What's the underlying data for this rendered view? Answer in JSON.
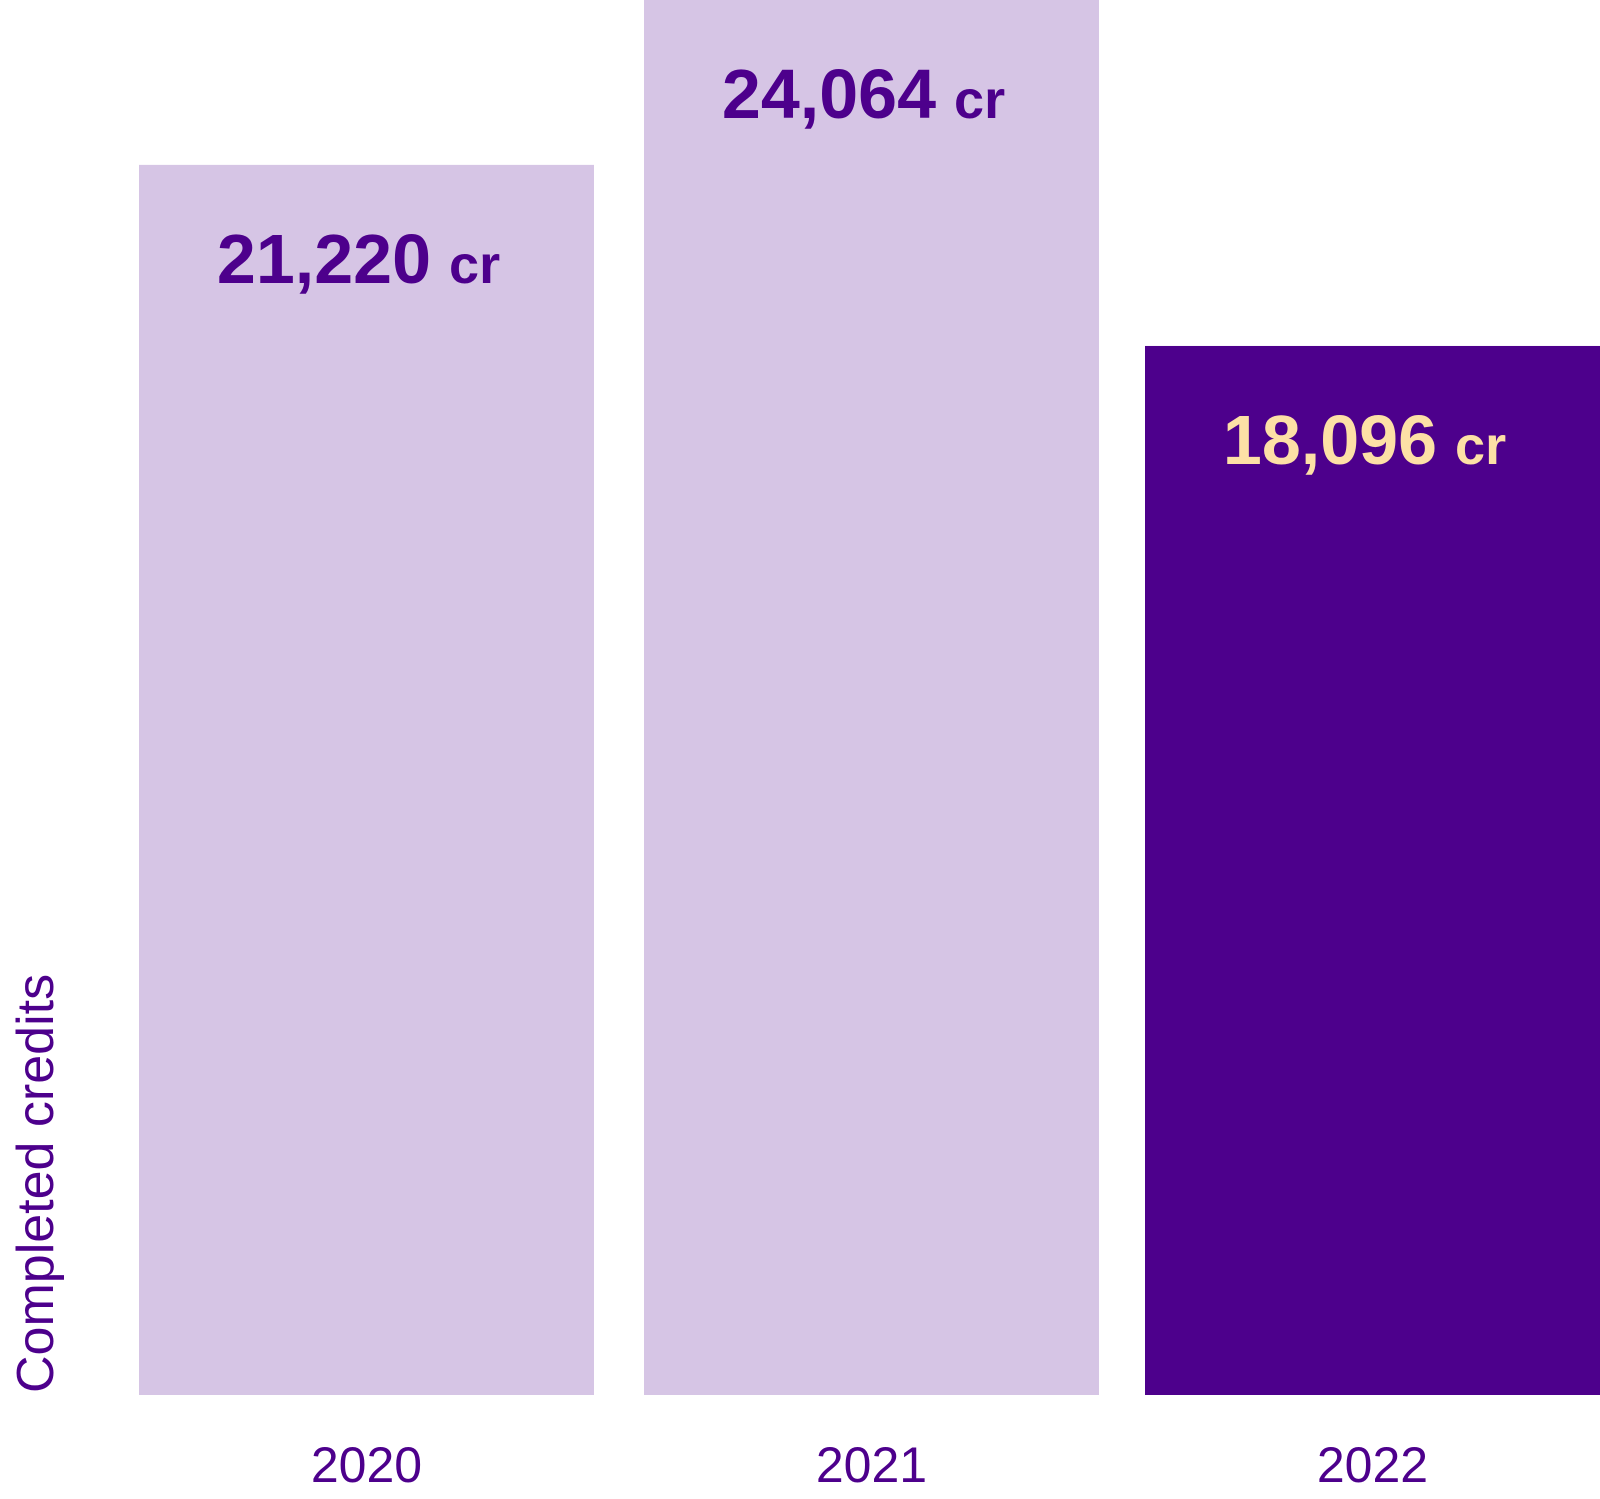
{
  "chart_data": {
    "type": "bar",
    "title": "",
    "xlabel": "",
    "ylabel": "Completed credits",
    "categories": [
      "2020",
      "2021",
      "2022"
    ],
    "values": [
      21220,
      24064,
      18096
    ],
    "value_labels": [
      "21,220",
      "24,064",
      "18,096"
    ],
    "unit": "cr",
    "ylim": [
      0,
      24064
    ],
    "grid": false,
    "bar_colors": [
      "#d6c5e5",
      "#d6c5e5",
      "#4d008c"
    ],
    "label_colors": [
      "#4d008c",
      "#4d008c",
      "#fde0a6"
    ],
    "axis_text_color": "#4d008c"
  }
}
